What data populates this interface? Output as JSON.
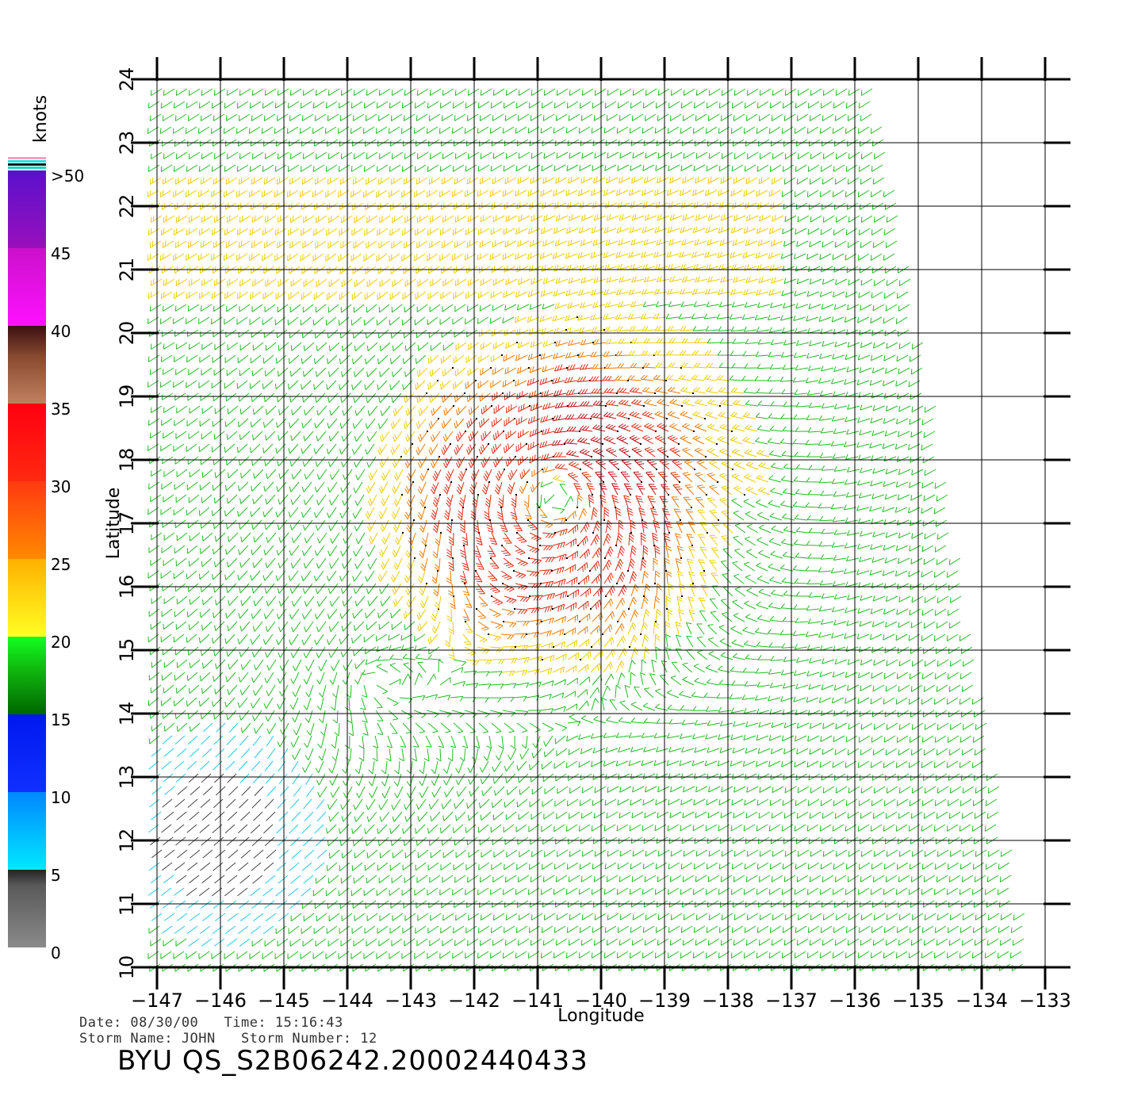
{
  "map": {
    "lon_range": [
      -147,
      -133
    ],
    "lat_range": [
      10,
      24
    ],
    "lon_ticks": [
      "-147",
      "-146",
      "-145",
      "-144",
      "-143",
      "-142",
      "-141",
      "-140",
      "-139",
      "-138",
      "-137",
      "-136",
      "-135",
      "-134",
      "-133"
    ],
    "lat_ticks": [
      "10",
      "11",
      "12",
      "13",
      "14",
      "15",
      "16",
      "17",
      "18",
      "19",
      "20",
      "21",
      "22",
      "23",
      "24"
    ],
    "xlabel": "Longitude",
    "ylabel": "Latitude",
    "grid": true,
    "storm_center": {
      "lon": -140.7,
      "lat": 17.4
    },
    "secondary_center": {
      "lon": -143.6,
      "lat": 14.6
    },
    "layer": "wind barbs colored by speed"
  },
  "colorbar": {
    "title": "knots",
    "labels": [
      ">50",
      "45",
      "40",
      "35",
      "30",
      "25",
      "20",
      "15",
      "10",
      "5",
      "0"
    ],
    "bands": [
      {
        "from": 45,
        "to": 50,
        "color": "#6a11cc"
      },
      {
        "from": 40,
        "to": 45,
        "color": "#ee11ee"
      },
      {
        "from": 35,
        "to": 40,
        "color": "#5a2a1a"
      },
      {
        "from": 30,
        "to": 35,
        "color": "#ff1a10"
      },
      {
        "from": 25,
        "to": 30,
        "color": "#ff6a00"
      },
      {
        "from": 20,
        "to": 25,
        "color": "#ffd400"
      },
      {
        "from": 15,
        "to": 20,
        "color": "#11dd11"
      },
      {
        "from": 10,
        "to": 15,
        "color": "#0a2aff"
      },
      {
        "from": 5,
        "to": 10,
        "color": "#00e5ff"
      },
      {
        "from": 0,
        "to": 5,
        "color": "#333333"
      }
    ]
  },
  "meta": {
    "line1": "Date: 08/30/00   Time: 15:16:43",
    "line2": "Storm Name: JOHN   Storm Number: 12",
    "title": "BYU QS_S2B06242.20002440433"
  }
}
